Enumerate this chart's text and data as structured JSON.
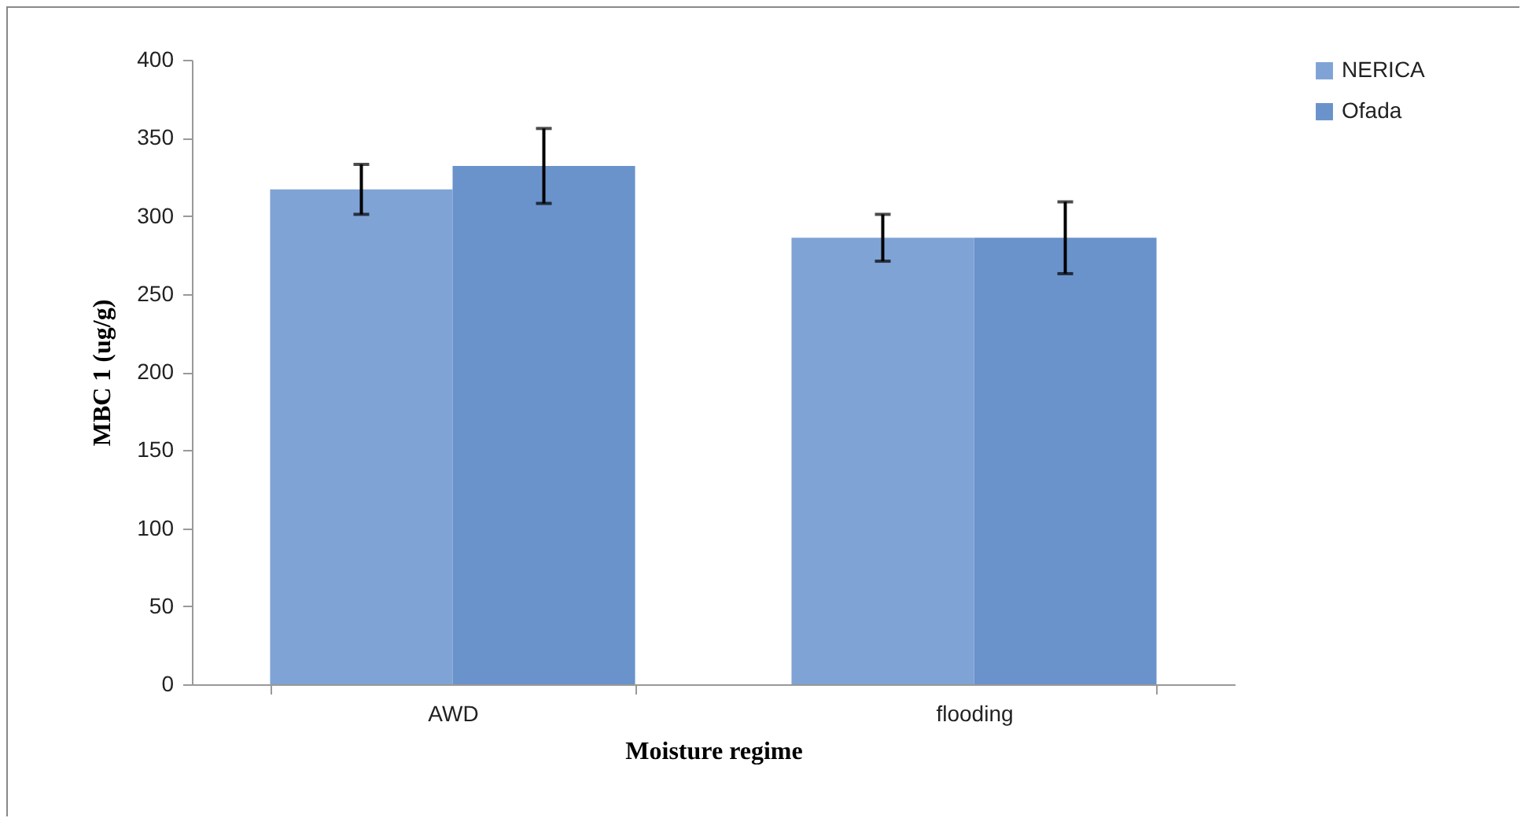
{
  "chart_data": {
    "type": "bar",
    "xlabel": "Moisture regime",
    "ylabel": "MBC 1 (ug/g)",
    "categories": [
      "AWD",
      "flooding"
    ],
    "series": [
      {
        "name": "NERICA",
        "color": "#7fa3d5",
        "values": [
          317,
          286
        ],
        "errors": [
          16,
          15
        ]
      },
      {
        "name": "Ofada",
        "color": "#6a92cb",
        "values": [
          332,
          286
        ],
        "errors": [
          24,
          23
        ]
      }
    ],
    "ylim": [
      0,
      400
    ],
    "yticks": [
      0,
      50,
      100,
      150,
      200,
      250,
      300,
      350,
      400
    ],
    "grid": false,
    "legend": "right"
  }
}
